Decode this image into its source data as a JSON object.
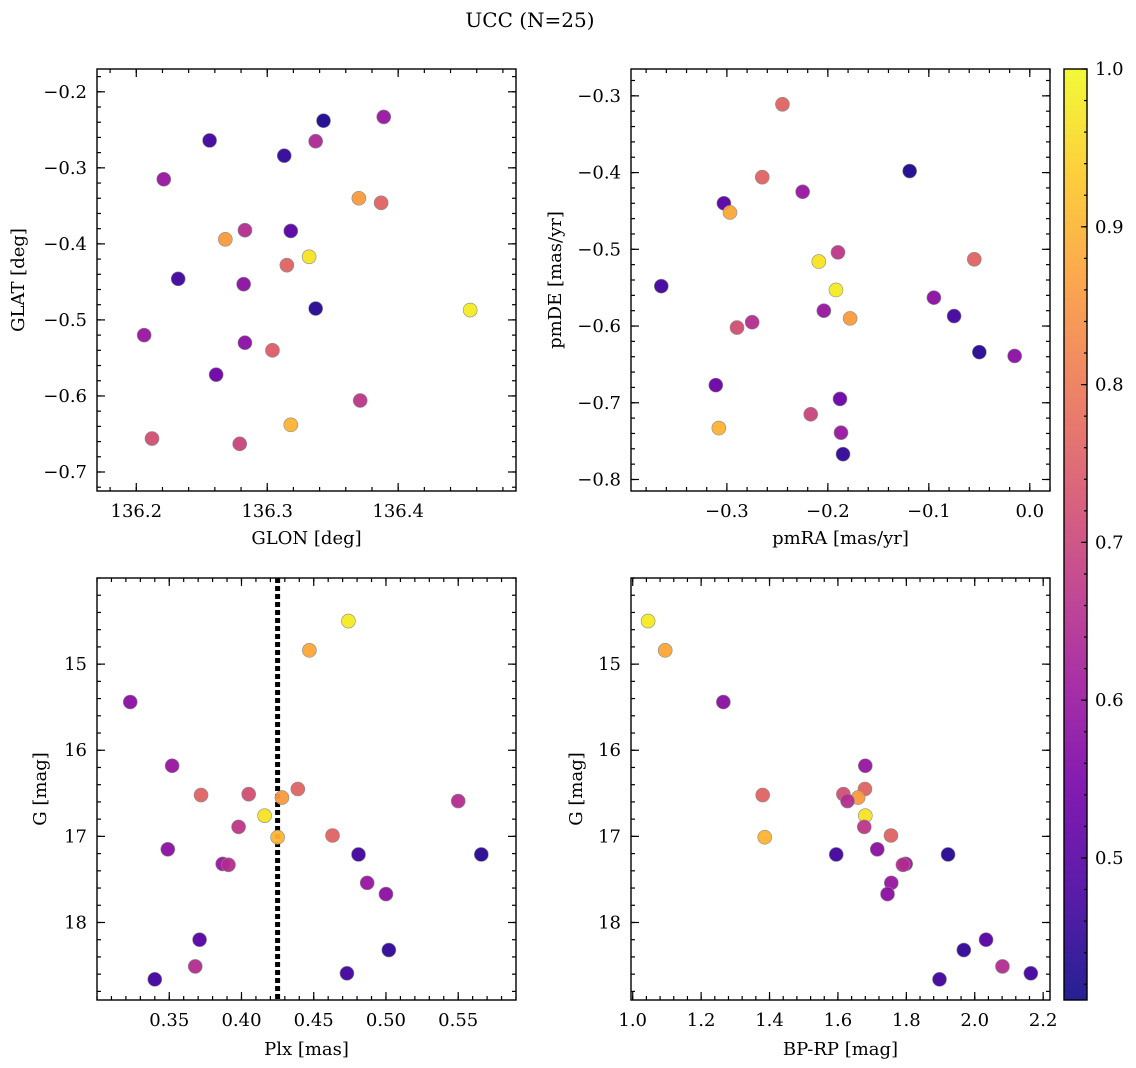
{
  "figure_title": "UCC (N=25)",
  "colors": {
    "plasma": [
      "#0d0887",
      "#46039f",
      "#7201a8",
      "#9c179e",
      "#bd3786",
      "#d8576b",
      "#ed7953",
      "#fb9f3a",
      "#fdca26",
      "#f0f921"
    ],
    "marker_alpha": 0.8,
    "plx_line": "#000000"
  },
  "colorbar": {
    "range": [
      0.41,
      1.0
    ],
    "ticks": [
      0.5,
      0.6,
      0.7,
      0.8,
      0.9,
      1.0
    ],
    "tick_labels": [
      "0.5",
      "0.6",
      "0.7",
      "0.8",
      "0.9",
      "1.0"
    ]
  },
  "chart_data": [
    {
      "type": "scatter",
      "id": "glon-glat",
      "xlabel": "GLON [deg]",
      "ylabel": "GLAT [deg]",
      "xlim": [
        136.17,
        136.49
      ],
      "ylim": [
        -0.725,
        -0.17
      ],
      "y_inverted": false,
      "xticks": [
        136.2,
        136.3,
        136.4
      ],
      "xtick_labels": [
        "136.2",
        "136.3",
        "136.4"
      ],
      "yticks": [
        -0.7,
        -0.6,
        -0.5,
        -0.4,
        -0.3,
        -0.2
      ],
      "ytick_labels": [
        "−0.7",
        "−0.6",
        "−0.5",
        "−0.4",
        "−0.3",
        "−0.2"
      ],
      "points": [
        {
          "x": 136.343,
          "y": -0.238,
          "c": 0.43
        },
        {
          "x": 136.389,
          "y": -0.233,
          "c": 0.6
        },
        {
          "x": 136.256,
          "y": -0.264,
          "c": 0.47
        },
        {
          "x": 136.337,
          "y": -0.265,
          "c": 0.64
        },
        {
          "x": 136.313,
          "y": -0.284,
          "c": 0.45
        },
        {
          "x": 136.221,
          "y": -0.315,
          "c": 0.6
        },
        {
          "x": 136.37,
          "y": -0.34,
          "c": 0.86
        },
        {
          "x": 136.387,
          "y": -0.346,
          "c": 0.76
        },
        {
          "x": 136.283,
          "y": -0.382,
          "c": 0.65
        },
        {
          "x": 136.318,
          "y": -0.383,
          "c": 0.5
        },
        {
          "x": 136.268,
          "y": -0.394,
          "c": 0.86
        },
        {
          "x": 136.332,
          "y": -0.417,
          "c": 0.97
        },
        {
          "x": 136.315,
          "y": -0.428,
          "c": 0.76
        },
        {
          "x": 136.232,
          "y": -0.446,
          "c": 0.47
        },
        {
          "x": 136.282,
          "y": -0.453,
          "c": 0.58
        },
        {
          "x": 136.337,
          "y": -0.485,
          "c": 0.44
        },
        {
          "x": 136.455,
          "y": -0.487,
          "c": 0.98
        },
        {
          "x": 136.206,
          "y": -0.52,
          "c": 0.6
        },
        {
          "x": 136.283,
          "y": -0.53,
          "c": 0.58
        },
        {
          "x": 136.304,
          "y": -0.54,
          "c": 0.75
        },
        {
          "x": 136.261,
          "y": -0.572,
          "c": 0.53
        },
        {
          "x": 136.371,
          "y": -0.606,
          "c": 0.67
        },
        {
          "x": 136.318,
          "y": -0.638,
          "c": 0.9
        },
        {
          "x": 136.212,
          "y": -0.656,
          "c": 0.72
        },
        {
          "x": 136.279,
          "y": -0.663,
          "c": 0.7
        }
      ]
    },
    {
      "type": "scatter",
      "id": "pm",
      "xlabel": "pmRA [mas/yr]",
      "ylabel": "pmDE [mas/yr]",
      "xlim": [
        -0.395,
        0.02
      ],
      "ylim": [
        -0.815,
        -0.265
      ],
      "y_inverted": false,
      "xticks": [
        -0.3,
        -0.2,
        -0.1,
        0.0
      ],
      "xtick_labels": [
        "−0.3",
        "−0.2",
        "−0.1",
        "0.0"
      ],
      "yticks": [
        -0.8,
        -0.7,
        -0.6,
        -0.5,
        -0.4,
        -0.3
      ],
      "ytick_labels": [
        "−0.8",
        "−0.7",
        "−0.6",
        "−0.5",
        "−0.4",
        "−0.3"
      ],
      "points": [
        {
          "x": -0.245,
          "y": -0.311,
          "c": 0.76
        },
        {
          "x": -0.119,
          "y": -0.398,
          "c": 0.43
        },
        {
          "x": -0.265,
          "y": -0.406,
          "c": 0.76
        },
        {
          "x": -0.225,
          "y": -0.425,
          "c": 0.6
        },
        {
          "x": -0.303,
          "y": -0.44,
          "c": 0.5
        },
        {
          "x": -0.297,
          "y": -0.452,
          "c": 0.88
        },
        {
          "x": -0.19,
          "y": -0.504,
          "c": 0.67
        },
        {
          "x": -0.055,
          "y": -0.513,
          "c": 0.76
        },
        {
          "x": -0.209,
          "y": -0.516,
          "c": 0.97
        },
        {
          "x": -0.365,
          "y": -0.548,
          "c": 0.47
        },
        {
          "x": -0.192,
          "y": -0.553,
          "c": 0.98
        },
        {
          "x": -0.095,
          "y": -0.563,
          "c": 0.58
        },
        {
          "x": -0.204,
          "y": -0.58,
          "c": 0.6
        },
        {
          "x": -0.075,
          "y": -0.587,
          "c": 0.47
        },
        {
          "x": -0.178,
          "y": -0.59,
          "c": 0.86
        },
        {
          "x": -0.275,
          "y": -0.595,
          "c": 0.65
        },
        {
          "x": -0.29,
          "y": -0.602,
          "c": 0.72
        },
        {
          "x": -0.05,
          "y": -0.634,
          "c": 0.44
        },
        {
          "x": -0.015,
          "y": -0.639,
          "c": 0.58
        },
        {
          "x": -0.311,
          "y": -0.677,
          "c": 0.53
        },
        {
          "x": -0.188,
          "y": -0.695,
          "c": 0.53
        },
        {
          "x": -0.217,
          "y": -0.715,
          "c": 0.7
        },
        {
          "x": -0.308,
          "y": -0.733,
          "c": 0.9
        },
        {
          "x": -0.187,
          "y": -0.739,
          "c": 0.6
        },
        {
          "x": -0.185,
          "y": -0.767,
          "c": 0.45
        }
      ]
    },
    {
      "type": "scatter",
      "id": "plx-g",
      "xlabel": "Plx [mas]",
      "ylabel": "G [mag]",
      "xlim": [
        0.3,
        0.59
      ],
      "ylim": [
        14.0,
        18.9
      ],
      "y_inverted": true,
      "xticks": [
        0.35,
        0.4,
        0.45,
        0.5,
        0.55
      ],
      "xtick_labels": [
        "0.35",
        "0.40",
        "0.45",
        "0.50",
        "0.55"
      ],
      "yticks": [
        15,
        16,
        17,
        18
      ],
      "ytick_labels": [
        "15",
        "16",
        "17",
        "18"
      ],
      "vline": {
        "x": 0.425
      },
      "points": [
        {
          "x": 0.474,
          "y": 14.5,
          "c": 0.98
        },
        {
          "x": 0.447,
          "y": 14.84,
          "c": 0.88
        },
        {
          "x": 0.323,
          "y": 15.44,
          "c": 0.58
        },
        {
          "x": 0.352,
          "y": 16.18,
          "c": 0.6
        },
        {
          "x": 0.439,
          "y": 16.45,
          "c": 0.76
        },
        {
          "x": 0.372,
          "y": 16.52,
          "c": 0.76
        },
        {
          "x": 0.405,
          "y": 16.51,
          "c": 0.72
        },
        {
          "x": 0.428,
          "y": 16.55,
          "c": 0.86
        },
        {
          "x": 0.55,
          "y": 16.59,
          "c": 0.65
        },
        {
          "x": 0.416,
          "y": 16.76,
          "c": 0.97
        },
        {
          "x": 0.398,
          "y": 16.89,
          "c": 0.67
        },
        {
          "x": 0.463,
          "y": 16.99,
          "c": 0.76
        },
        {
          "x": 0.425,
          "y": 17.01,
          "c": 0.9
        },
        {
          "x": 0.349,
          "y": 17.15,
          "c": 0.58
        },
        {
          "x": 0.481,
          "y": 17.21,
          "c": 0.47
        },
        {
          "x": 0.566,
          "y": 17.21,
          "c": 0.44
        },
        {
          "x": 0.387,
          "y": 17.32,
          "c": 0.6
        },
        {
          "x": 0.391,
          "y": 17.33,
          "c": 0.65
        },
        {
          "x": 0.487,
          "y": 17.54,
          "c": 0.6
        },
        {
          "x": 0.5,
          "y": 17.67,
          "c": 0.58
        },
        {
          "x": 0.371,
          "y": 18.2,
          "c": 0.5
        },
        {
          "x": 0.502,
          "y": 18.32,
          "c": 0.45
        },
        {
          "x": 0.368,
          "y": 18.51,
          "c": 0.65
        },
        {
          "x": 0.473,
          "y": 18.59,
          "c": 0.47
        },
        {
          "x": 0.34,
          "y": 18.66,
          "c": 0.47
        }
      ]
    },
    {
      "type": "scatter",
      "id": "cmd",
      "xlabel": "BP-RP [mag]",
      "ylabel": "G [mag]",
      "xlim": [
        0.995,
        2.22
      ],
      "ylim": [
        14.0,
        18.9
      ],
      "y_inverted": true,
      "xticks": [
        1.0,
        1.2,
        1.4,
        1.6,
        1.8,
        2.0,
        2.2
      ],
      "xtick_labels": [
        "1.0",
        "1.2",
        "1.4",
        "1.6",
        "1.8",
        "2.0",
        "2.2"
      ],
      "yticks": [
        15,
        16,
        17,
        18
      ],
      "ytick_labels": [
        "15",
        "16",
        "17",
        "18"
      ],
      "points": [
        {
          "x": 1.045,
          "y": 14.5,
          "c": 0.98
        },
        {
          "x": 1.095,
          "y": 14.84,
          "c": 0.88
        },
        {
          "x": 1.265,
          "y": 15.44,
          "c": 0.58
        },
        {
          "x": 1.68,
          "y": 16.18,
          "c": 0.6
        },
        {
          "x": 1.679,
          "y": 16.45,
          "c": 0.76
        },
        {
          "x": 1.38,
          "y": 16.52,
          "c": 0.76
        },
        {
          "x": 1.616,
          "y": 16.51,
          "c": 0.72
        },
        {
          "x": 1.659,
          "y": 16.55,
          "c": 0.86
        },
        {
          "x": 1.628,
          "y": 16.59,
          "c": 0.65
        },
        {
          "x": 1.68,
          "y": 16.76,
          "c": 0.97
        },
        {
          "x": 1.677,
          "y": 16.89,
          "c": 0.67
        },
        {
          "x": 1.755,
          "y": 16.99,
          "c": 0.76
        },
        {
          "x": 1.386,
          "y": 17.01,
          "c": 0.9
        },
        {
          "x": 1.715,
          "y": 17.15,
          "c": 0.58
        },
        {
          "x": 1.595,
          "y": 17.21,
          "c": 0.47
        },
        {
          "x": 1.922,
          "y": 17.21,
          "c": 0.44
        },
        {
          "x": 1.798,
          "y": 17.32,
          "c": 0.6
        },
        {
          "x": 1.79,
          "y": 17.33,
          "c": 0.65
        },
        {
          "x": 1.756,
          "y": 17.54,
          "c": 0.6
        },
        {
          "x": 1.745,
          "y": 17.67,
          "c": 0.58
        },
        {
          "x": 2.033,
          "y": 18.2,
          "c": 0.5
        },
        {
          "x": 1.968,
          "y": 18.32,
          "c": 0.45
        },
        {
          "x": 2.081,
          "y": 18.51,
          "c": 0.65
        },
        {
          "x": 2.164,
          "y": 18.59,
          "c": 0.47
        },
        {
          "x": 1.897,
          "y": 18.66,
          "c": 0.47
        }
      ]
    }
  ]
}
